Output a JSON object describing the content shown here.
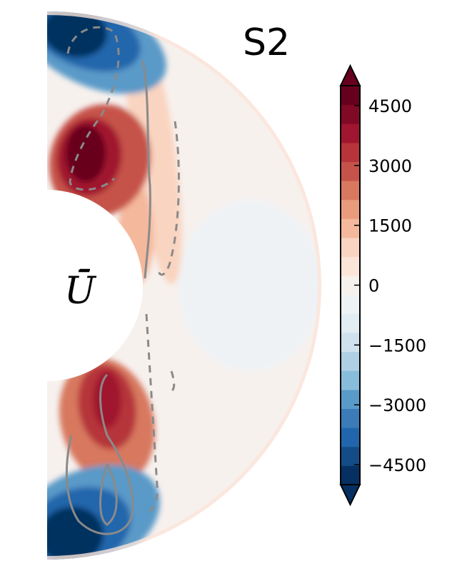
{
  "chart_data": {
    "type": "heatmap",
    "title": "S2",
    "field_label": "Ū",
    "geometry": "meridional half-annulus",
    "colormap": "RdBu_r (diverging blue–white–red)",
    "colorbar": {
      "range": [
        -5000,
        5000
      ],
      "levels": 21,
      "extend": "both",
      "ticks": [
        4500,
        3000,
        1500,
        0,
        -1500,
        -3000,
        -4500
      ],
      "tick_labels": [
        "4500",
        "3000",
        "1500",
        "0",
        "−1500",
        "−3000",
        "−4500"
      ],
      "colors": [
        "#053061",
        "#134c87",
        "#2166ac",
        "#3a7bb8",
        "#5a9ac8",
        "#88bcdb",
        "#aecfe4",
        "#cfe1ed",
        "#e1ecf3",
        "#eef2f5",
        "#f7f1ee",
        "#fbe5d9",
        "#f9d4c0",
        "#f4b89c",
        "#e99b7b",
        "#d7785f",
        "#c6534a",
        "#b6343a",
        "#a0152f",
        "#800a26",
        "#67001f"
      ]
    },
    "regions": [
      {
        "location": "north pole, near outer boundary",
        "value": -4800
      },
      {
        "location": "north, near inner boundary",
        "value": 4800
      },
      {
        "location": "northern tangent-cylinder region",
        "value": 1200
      },
      {
        "location": "equatorial bulk",
        "value": -300
      },
      {
        "location": "south, near inner boundary",
        "value": 4000
      },
      {
        "location": "south pole, near outer boundary",
        "value": -4800
      }
    ],
    "contours": [
      {
        "style": "dashed",
        "sign": "negative",
        "hemisphere": "north"
      },
      {
        "style": "solid",
        "sign": "positive",
        "hemisphere": "north"
      },
      {
        "style": "solid",
        "sign": "positive",
        "hemisphere": "south"
      },
      {
        "style": "dashed",
        "sign": "negative",
        "hemisphere": "south"
      }
    ]
  }
}
